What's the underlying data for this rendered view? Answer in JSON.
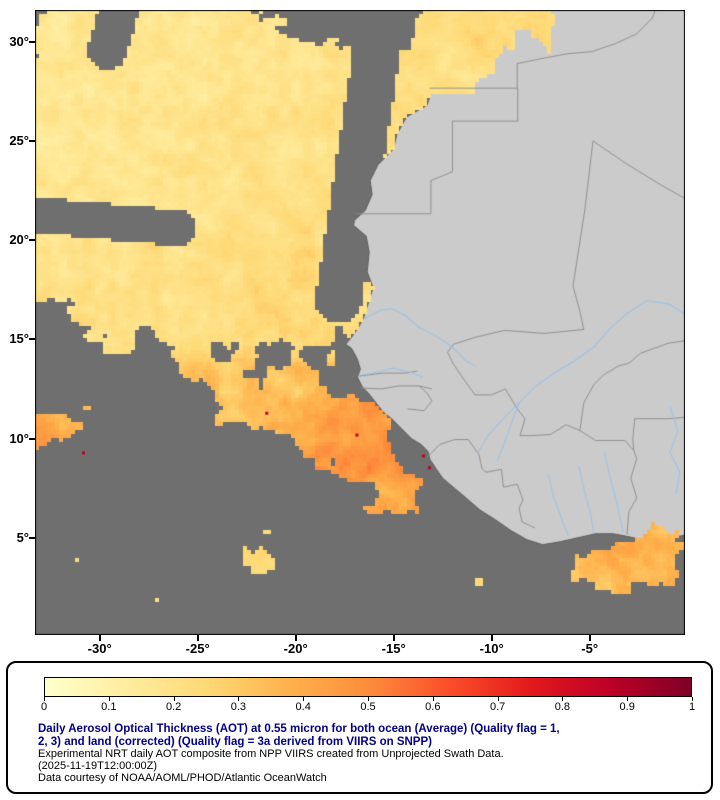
{
  "page": {
    "background": "#ffffff"
  },
  "map": {
    "colors": {
      "nodata_ocean": "#6f6f6f",
      "land": "#cbcbcb",
      "coast_line": "#5f5f5f",
      "country_border": "#8a8a8a",
      "river": "#9dc3e6",
      "frame": "#000000",
      "axis_text": "#000000"
    },
    "y_axis_ticks": [
      {
        "value": 30,
        "label": "30°"
      },
      {
        "value": 25,
        "label": "25°"
      },
      {
        "value": 20,
        "label": "20°"
      },
      {
        "value": 15,
        "label": "15°"
      },
      {
        "value": 10,
        "label": "10°"
      },
      {
        "value": 5,
        "label": "5°"
      }
    ],
    "x_axis_ticks": [
      {
        "value": -30,
        "label": "-30°"
      },
      {
        "value": -25,
        "label": "-25°"
      },
      {
        "value": -20,
        "label": "-20°"
      },
      {
        "value": -15,
        "label": "-15°"
      },
      {
        "value": -10,
        "label": "-10°"
      },
      {
        "value": -5,
        "label": "-5°"
      }
    ]
  },
  "legend": {
    "scale": {
      "min": 0,
      "max": 1,
      "tick_labels": [
        "0",
        "0.1",
        "0.2",
        "0.3",
        "0.4",
        "0.5",
        "0.6",
        "0.7",
        "0.8",
        "0.9",
        "1"
      ],
      "colors": [
        "#ffffcc",
        "#ffeda0",
        "#fed976",
        "#feb24c",
        "#fd8d3c",
        "#fc4e2a",
        "#e31a1c",
        "#bd0026",
        "#800026"
      ]
    },
    "title_color": "#00008b",
    "title_lines": [
      "Daily Aerosol Optical Thickness (AOT) at 0.55 micron for both ocean (Average) (Quality flag = 1,",
      "2, 3) and land (corrected) (Quality flag = 3a derived from VIIRS on SNPP)"
    ],
    "subtitle": "Experimental NRT daily AOT composite from NPP VIIRS created from Unprojected Swath Data.",
    "timestamp": "(2025-11-19T12:00:00Z)",
    "credit": "Data courtesy of NOAA/AOML/PHOD/Atlantic OceanWatch"
  }
}
